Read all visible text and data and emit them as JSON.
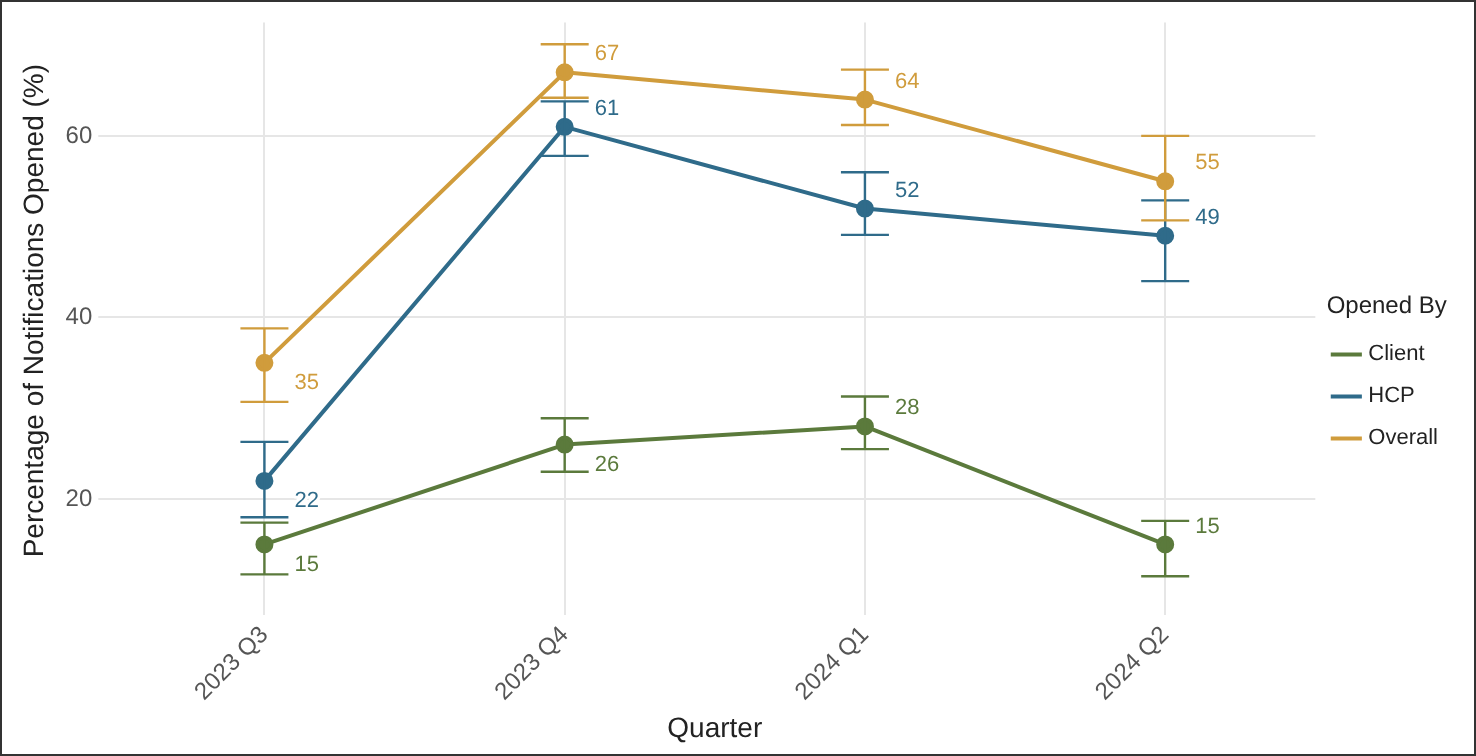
{
  "chart_data": {
    "type": "line",
    "xlabel": "Quarter",
    "ylabel": "Percentage of Notifications Opened (%)",
    "legend_title": "Opened By",
    "categories": [
      "2023 Q3",
      "2023 Q4",
      "2024 Q1",
      "2024 Q2"
    ],
    "series": [
      {
        "name": "Client",
        "color": "#5b7a3c",
        "values": [
          15,
          26,
          28,
          15
        ],
        "errors": [
          [
            11.7,
            17.4
          ],
          [
            23.0,
            28.9
          ],
          [
            25.5,
            31.3
          ],
          [
            11.5,
            17.6
          ]
        ]
      },
      {
        "name": "HCP",
        "color": "#2f6b8a",
        "values": [
          22,
          61,
          52,
          49
        ],
        "errors": [
          [
            18.0,
            26.3
          ],
          [
            57.8,
            63.8
          ],
          [
            49.1,
            56.0
          ],
          [
            44.0,
            52.9
          ]
        ]
      },
      {
        "name": "Overall",
        "color": "#d09c3c",
        "values": [
          35,
          67,
          64,
          55
        ],
        "errors": [
          [
            30.7,
            38.8
          ],
          [
            64.2,
            70.1
          ],
          [
            61.2,
            67.3
          ],
          [
            50.7,
            60.0
          ]
        ]
      }
    ],
    "ylim": [
      9,
      72.5
    ],
    "yticks": [
      20,
      40,
      60
    ],
    "grid": true,
    "legend": "right",
    "marker": "circle",
    "line_style": "solid",
    "data_labels": true
  }
}
